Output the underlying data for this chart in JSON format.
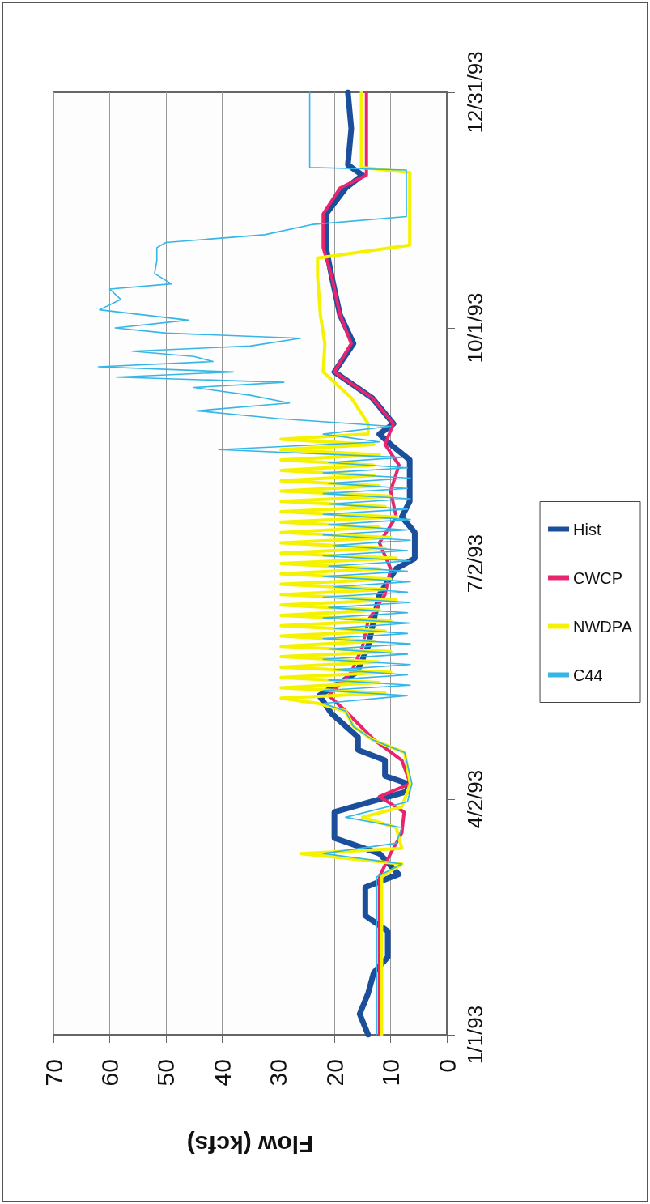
{
  "chart_data": {
    "type": "line",
    "orientation": "horizontal",
    "xlabel": "Flow (kcfs)",
    "ylim": [
      "1993-01-01",
      "1993-12-31"
    ],
    "yticks": [
      {
        "value": "1993-01-01",
        "label": "1/1/93"
      },
      {
        "value": "1993-04-02",
        "label": "4/2/93"
      },
      {
        "value": "1993-07-02",
        "label": "7/2/93"
      },
      {
        "value": "1993-10-01",
        "label": "10/1/93"
      },
      {
        "value": "1993-12-31",
        "label": "12/31/93"
      }
    ],
    "xlim": [
      70,
      0
    ],
    "xticks": [
      70,
      60,
      50,
      40,
      30,
      20,
      10,
      0
    ],
    "grid": "x",
    "legend": "right",
    "series": [
      {
        "name": "Hist",
        "color": "#1b4f9c",
        "x": [
          "1993-01-01",
          "1993-01-09",
          "1993-01-17",
          "1993-01-25",
          "1993-01-31",
          "1993-02-10",
          "1993-02-16",
          "1993-02-27",
          "1993-03-04",
          "1993-03-12",
          "1993-03-18",
          "1993-03-28",
          "1993-04-05",
          "1993-04-08",
          "1993-04-11",
          "1993-04-17",
          "1993-04-21",
          "1993-04-26",
          "1993-05-05",
          "1993-05-12",
          "1993-05-21",
          "1993-05-31",
          "1993-06-10",
          "1993-06-20",
          "1993-06-30",
          "1993-07-04",
          "1993-07-14",
          "1993-07-20",
          "1993-07-26",
          "1993-08-11",
          "1993-08-17",
          "1993-08-21",
          "1993-08-25",
          "1993-09-04",
          "1993-09-14",
          "1993-09-25",
          "1993-10-06",
          "1993-10-21",
          "1993-11-01",
          "1993-11-14",
          "1993-11-24",
          "1993-11-29",
          "1993-12-03",
          "1993-12-17",
          "1993-12-31"
        ],
        "values": [
          14,
          15.5,
          14,
          13,
          10.5,
          10.5,
          14.5,
          14.5,
          8.6,
          12,
          20,
          20,
          7,
          7,
          11,
          11,
          15.8,
          15.8,
          20.5,
          22.7,
          16,
          14,
          13,
          12,
          9,
          5.7,
          5.7,
          8,
          6.6,
          6.6,
          10,
          12,
          9.5,
          13.3,
          20,
          16.6,
          19,
          20.5,
          21.5,
          21.5,
          18,
          15,
          17.6,
          17,
          17.6
        ]
      },
      {
        "name": "CWCP",
        "color": "#e8246f",
        "x": [
          "1993-01-01",
          "1993-03-03",
          "1993-03-12",
          "1993-03-20",
          "1993-03-28",
          "1993-04-03",
          "1993-04-08",
          "1993-04-17",
          "1993-04-25",
          "1993-05-06",
          "1993-05-12",
          "1993-05-21",
          "1993-05-31",
          "1993-06-10",
          "1993-06-20",
          "1993-06-30",
          "1993-07-10",
          "1993-07-20",
          "1993-07-30",
          "1993-08-09",
          "1993-08-17",
          "1993-08-25",
          "1993-09-04",
          "1993-09-14",
          "1993-09-25",
          "1993-10-06",
          "1993-10-21",
          "1993-11-01",
          "1993-11-14",
          "1993-11-24",
          "1993-11-29",
          "1993-12-31"
        ],
        "values": [
          12,
          12,
          10,
          8,
          7.6,
          12,
          6.5,
          8,
          13,
          18,
          21,
          17,
          15,
          14,
          11,
          10,
          12,
          9,
          10,
          8.5,
          11,
          9.5,
          13.3,
          20,
          17,
          19,
          20.5,
          22,
          22,
          19,
          14.3,
          14.3
        ]
      },
      {
        "name": "NWDPA",
        "color": "#f5f200",
        "x": [
          "1993-01-01",
          "1993-03-03",
          "1993-03-08",
          "1993-03-12",
          "1993-03-14",
          "1993-03-22",
          "1993-03-26",
          "1993-03-30",
          "1993-04-08",
          "1993-04-20",
          "1993-04-25",
          "1993-04-30",
          "1993-05-06",
          "1993-05-09",
          "1993-05-11",
          "1993-05-13",
          "1993-05-15",
          "1993-05-17",
          "1993-05-19",
          "1993-05-21",
          "1993-05-23",
          "1993-05-25",
          "1993-05-27",
          "1993-05-29",
          "1993-05-31",
          "1993-06-02",
          "1993-06-04",
          "1993-06-06",
          "1993-06-08",
          "1993-06-10",
          "1993-06-12",
          "1993-06-14",
          "1993-06-16",
          "1993-06-18",
          "1993-06-20",
          "1993-06-22",
          "1993-06-24",
          "1993-06-26",
          "1993-06-28",
          "1993-06-30",
          "1993-07-02",
          "1993-07-04",
          "1993-07-06",
          "1993-07-08",
          "1993-07-10",
          "1993-07-12",
          "1993-07-14",
          "1993-07-16",
          "1993-07-18",
          "1993-07-20",
          "1993-07-22",
          "1993-07-24",
          "1993-07-26",
          "1993-07-28",
          "1993-07-30",
          "1993-08-01",
          "1993-08-03",
          "1993-08-05",
          "1993-08-07",
          "1993-08-09",
          "1993-08-11",
          "1993-08-13",
          "1993-08-15",
          "1993-08-17",
          "1993-08-19",
          "1993-08-21",
          "1993-08-25",
          "1993-09-04",
          "1993-09-14",
          "1993-09-25",
          "1993-10-06",
          "1993-10-21",
          "1993-10-28",
          "1993-11-02",
          "1993-11-30",
          "1993-12-02",
          "1993-12-31"
        ],
        "values": [
          11.6,
          11.6,
          8,
          26,
          8,
          9,
          15,
          8,
          6.5,
          7.5,
          13.3,
          16.6,
          18,
          23,
          29.5,
          11,
          29.5,
          12,
          29.5,
          10,
          29.5,
          12,
          29.5,
          10,
          29.5,
          13,
          29.5,
          11,
          29.5,
          10,
          29.5,
          12,
          29.5,
          9,
          29.5,
          11,
          29.5,
          10,
          29.5,
          12,
          29.5,
          9,
          29.5,
          11,
          29.5,
          10,
          29.5,
          12,
          29.5,
          9,
          29.5,
          11,
          29.5,
          10,
          29.5,
          12,
          29.5,
          13,
          29.5,
          13,
          29.5,
          12,
          29.5,
          13,
          29.5,
          14,
          14,
          17,
          22,
          21.7,
          22.5,
          23,
          23,
          6.6,
          6.6,
          15.2,
          15.2
        ]
      },
      {
        "name": "C44",
        "color": "#35b6e6",
        "x": [
          "1993-01-01",
          "1993-03-03",
          "1993-03-08",
          "1993-03-12",
          "1993-03-16",
          "1993-03-22",
          "1993-03-26",
          "1993-04-01",
          "1993-04-08",
          "1993-04-20",
          "1993-04-25",
          "1993-04-30",
          "1993-05-06",
          "1993-05-09",
          "1993-05-12",
          "1993-05-14",
          "1993-05-16",
          "1993-05-18",
          "1993-05-20",
          "1993-05-22",
          "1993-05-24",
          "1993-05-26",
          "1993-05-28",
          "1993-05-30",
          "1993-06-01",
          "1993-06-03",
          "1993-06-05",
          "1993-06-07",
          "1993-06-09",
          "1993-06-11",
          "1993-06-13",
          "1993-06-15",
          "1993-06-17",
          "1993-06-19",
          "1993-06-21",
          "1993-06-23",
          "1993-06-25",
          "1993-06-27",
          "1993-06-29",
          "1993-07-01",
          "1993-07-03",
          "1993-07-05",
          "1993-07-07",
          "1993-07-09",
          "1993-07-11",
          "1993-07-13",
          "1993-07-15",
          "1993-07-17",
          "1993-07-19",
          "1993-07-21",
          "1993-07-23",
          "1993-07-25",
          "1993-07-27",
          "1993-07-29",
          "1993-07-31",
          "1993-08-02",
          "1993-08-04",
          "1993-08-06",
          "1993-08-08",
          "1993-08-10",
          "1993-08-12",
          "1993-08-15",
          "1993-08-18",
          "1993-08-21",
          "1993-08-24",
          "1993-08-27",
          "1993-08-30",
          "1993-09-02",
          "1993-09-05",
          "1993-09-08",
          "1993-09-10",
          "1993-09-12",
          "1993-09-14",
          "1993-09-16",
          "1993-09-18",
          "1993-09-20",
          "1993-09-22",
          "1993-09-24",
          "1993-09-27",
          "1993-09-29",
          "1993-10-01",
          "1993-10-04",
          "1993-10-08",
          "1993-10-12",
          "1993-10-16",
          "1993-10-18",
          "1993-10-22",
          "1993-10-27",
          "1993-11-01",
          "1993-11-03",
          "1993-11-06",
          "1993-11-10",
          "1993-11-13",
          "1993-12-01",
          "1993-12-02",
          "1993-12-31"
        ],
        "values": [
          12.5,
          12.5,
          8,
          22,
          9,
          8,
          18,
          7,
          6.2,
          7.5,
          13.3,
          16.6,
          18,
          22,
          7,
          22,
          6.5,
          21,
          7,
          20,
          6.5,
          22,
          7,
          21,
          6.5,
          22,
          7,
          20,
          6.5,
          22,
          7,
          21,
          6.5,
          22,
          7,
          20,
          6.5,
          22,
          7,
          21,
          6.5,
          22,
          7,
          20,
          6.5,
          22,
          7,
          21,
          6.5,
          22,
          7,
          21,
          6.5,
          22,
          7,
          21,
          6.5,
          22,
          7,
          21,
          8,
          40.6,
          12,
          22,
          10,
          30,
          44.5,
          28,
          35,
          45,
          29,
          58.8,
          38,
          62,
          41.6,
          45,
          56,
          35,
          26,
          50,
          59,
          46,
          61.8,
          58,
          60,
          49,
          52,
          51.6,
          51.6,
          50,
          32.4,
          23.8,
          7.2,
          7.2,
          24.4,
          24.4
        ]
      }
    ]
  }
}
